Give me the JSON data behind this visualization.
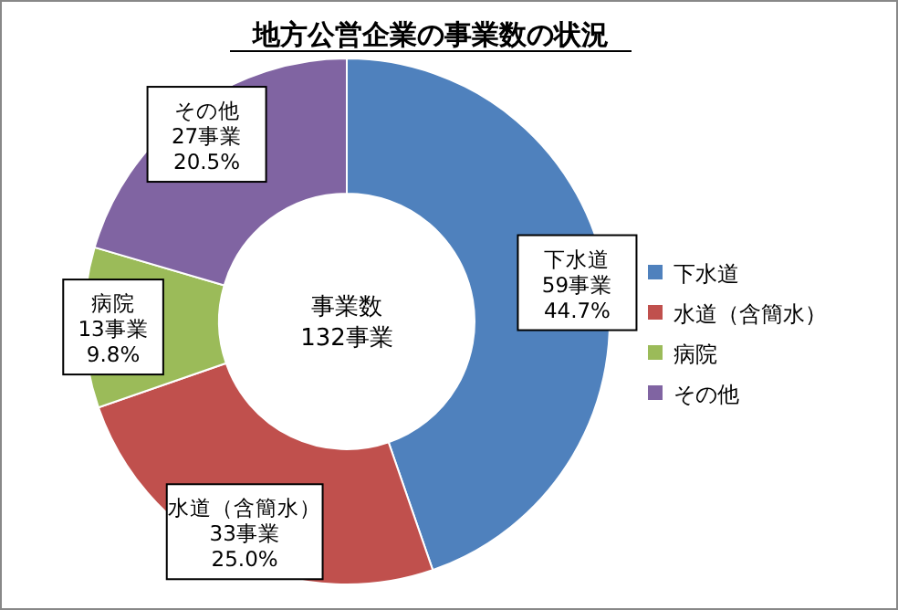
{
  "chart_data": {
    "type": "donut",
    "title": "地方公営企業の事業数の状況",
    "categories": [
      "下水道",
      "水道（含簡水）",
      "病院",
      "その他"
    ],
    "values": [
      59,
      33,
      13,
      27
    ],
    "colors": [
      "#4f81bd",
      "#c0504d",
      "#9bbb59",
      "#8064a2"
    ],
    "value_labels": [
      "59事業\n44.7%",
      "33事業\n25.0%",
      "13事業\n9.8%",
      "27事業\n20.5%"
    ],
    "annotations": [
      "事業数\n132事業"
    ],
    "legend": "right"
  }
}
